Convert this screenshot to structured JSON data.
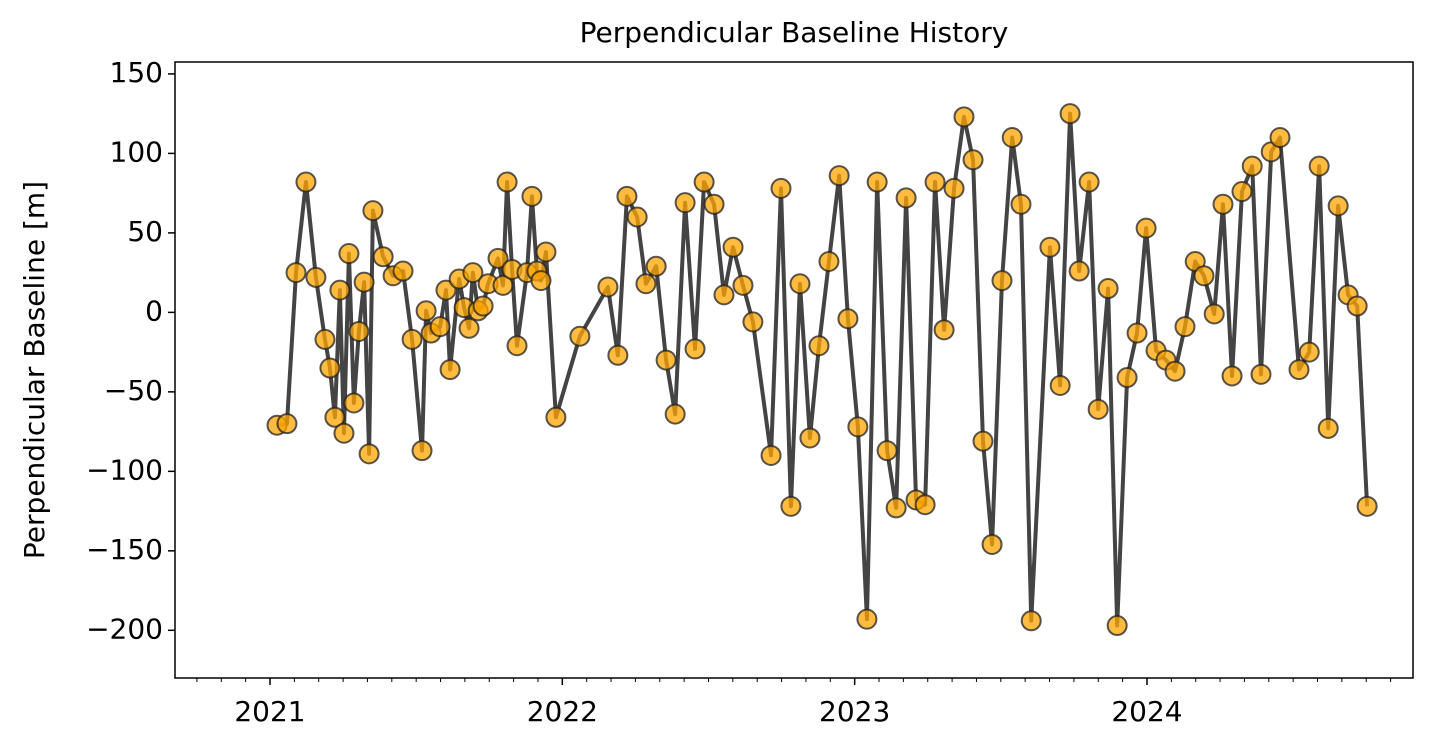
{
  "chart_data": {
    "type": "line",
    "title": "Perpendicular Baseline History",
    "ylabel": "Perpendicular Baseline [m]",
    "x": [
      2021.024,
      2021.058,
      2021.089,
      2021.123,
      2021.157,
      2021.188,
      2021.205,
      2021.222,
      2021.239,
      2021.253,
      2021.27,
      2021.287,
      2021.304,
      2021.322,
      2021.339,
      2021.352,
      2021.387,
      2021.421,
      2021.455,
      2021.486,
      2021.52,
      2021.534,
      2021.551,
      2021.582,
      2021.602,
      2021.616,
      2021.647,
      2021.664,
      2021.681,
      2021.694,
      2021.712,
      2021.729,
      2021.746,
      2021.78,
      2021.797,
      2021.811,
      2021.828,
      2021.845,
      2021.879,
      2021.896,
      2021.913,
      2021.927,
      2021.944,
      2021.978,
      2022.06,
      2022.156,
      2022.19,
      2022.221,
      2022.256,
      2022.286,
      2022.321,
      2022.355,
      2022.386,
      2022.42,
      2022.454,
      2022.485,
      2022.519,
      2022.553,
      2022.584,
      2022.618,
      2022.652,
      2022.714,
      2022.748,
      2022.782,
      2022.813,
      2022.847,
      2022.878,
      2022.912,
      2022.947,
      2022.977,
      2023.011,
      2023.042,
      2023.077,
      2023.111,
      2023.142,
      2023.176,
      2023.21,
      2023.241,
      2023.275,
      2023.306,
      2023.34,
      2023.374,
      2023.405,
      2023.439,
      2023.47,
      2023.504,
      2023.539,
      2023.569,
      2023.604,
      2023.668,
      2023.703,
      2023.737,
      2023.768,
      2023.802,
      2023.833,
      2023.867,
      2023.898,
      2023.932,
      2023.966,
      2023.997,
      2024.031,
      2024.065,
      2024.096,
      2024.13,
      2024.165,
      2024.195,
      2024.23,
      2024.26,
      2024.291,
      2024.325,
      2024.36,
      2024.39,
      2024.425,
      2024.455,
      2024.52,
      2024.555,
      2024.589,
      2024.62,
      2024.654,
      2024.688,
      2024.719,
      2024.753
    ],
    "values": [
      -71,
      -70,
      25,
      82,
      22,
      -17,
      -35,
      -66,
      14,
      -76,
      37,
      -57,
      -12,
      19,
      -89,
      64,
      35,
      23,
      26,
      -17,
      -87,
      1,
      -13,
      -9,
      14,
      -36,
      21,
      3,
      -10,
      25,
      1,
      4,
      18,
      34,
      17,
      82,
      27,
      -21,
      25,
      73,
      26,
      20,
      38,
      -66,
      -15,
      16,
      -27,
      73,
      60,
      18,
      29,
      -30,
      -64,
      69,
      -23,
      82,
      68,
      11,
      41,
      17,
      -6,
      -90,
      78,
      -122,
      18,
      -79,
      -21,
      32,
      86,
      -4,
      -72,
      -193,
      82,
      -87,
      -123,
      72,
      -118,
      -121,
      82,
      -11,
      78,
      123,
      96,
      -81,
      -146,
      20,
      110,
      68,
      -194,
      41,
      -46,
      125,
      26,
      82,
      -61,
      15,
      -197,
      -41,
      -13,
      53,
      -24,
      -30,
      -37,
      -9,
      32,
      23,
      -1,
      68,
      -40,
      76,
      92,
      -39,
      101,
      110,
      -36,
      -25,
      92,
      -73,
      67,
      11,
      4,
      -122
    ],
    "color": "#444444",
    "marker_color": "#ffa500",
    "xlim": [
      2020.675,
      2024.91
    ],
    "xticks": [
      2021,
      2022,
      2023,
      2024
    ],
    "ylim": [
      -230,
      157.5
    ],
    "yticks": [
      -200,
      -150,
      -100,
      -50,
      0,
      50,
      100,
      150
    ],
    "grid": false
  }
}
